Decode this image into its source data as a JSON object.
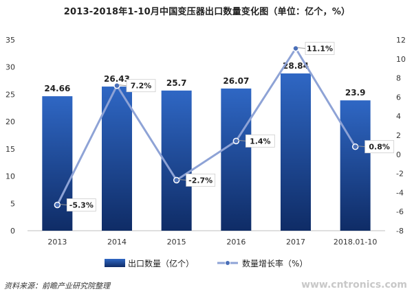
{
  "title": "2013-2018年1-10月中国变压器出口数量变化图（单位：亿个，%）",
  "source": "资料来源：前瞻产业研究院整理",
  "watermark": "www.cntronics.com",
  "chart_data": {
    "type": "bar",
    "categories": [
      "2013",
      "2014",
      "2015",
      "2016",
      "2017",
      "2018.01-10"
    ],
    "series": [
      {
        "name": "出口数量（亿个）",
        "type": "bar",
        "axis": "left",
        "values": [
          24.66,
          26.43,
          25.7,
          26.07,
          28.84,
          23.9
        ],
        "labels": [
          "24.66",
          "26.43",
          "25.7",
          "26.07",
          "28.84",
          "23.9"
        ],
        "color": "#1f4e9a"
      },
      {
        "name": "数量增长率（%）",
        "type": "line",
        "axis": "right",
        "values": [
          -5.3,
          7.2,
          -2.7,
          1.4,
          11.1,
          0.8
        ],
        "labels": [
          "-5.3%",
          "7.2%",
          "-2.7%",
          "1.4%",
          "11.1%",
          "0.8%"
        ],
        "color": "#8ea3d6"
      }
    ],
    "y_left": {
      "min": 0,
      "max": 35,
      "ticks": [
        0,
        5,
        10,
        15,
        20,
        25,
        30,
        35
      ]
    },
    "y_right": {
      "min": -8,
      "max": 12,
      "ticks": [
        -8,
        -6,
        -4,
        -2,
        0,
        2,
        4,
        6,
        8,
        10,
        12
      ]
    },
    "grid": false,
    "legend": "bottom"
  }
}
